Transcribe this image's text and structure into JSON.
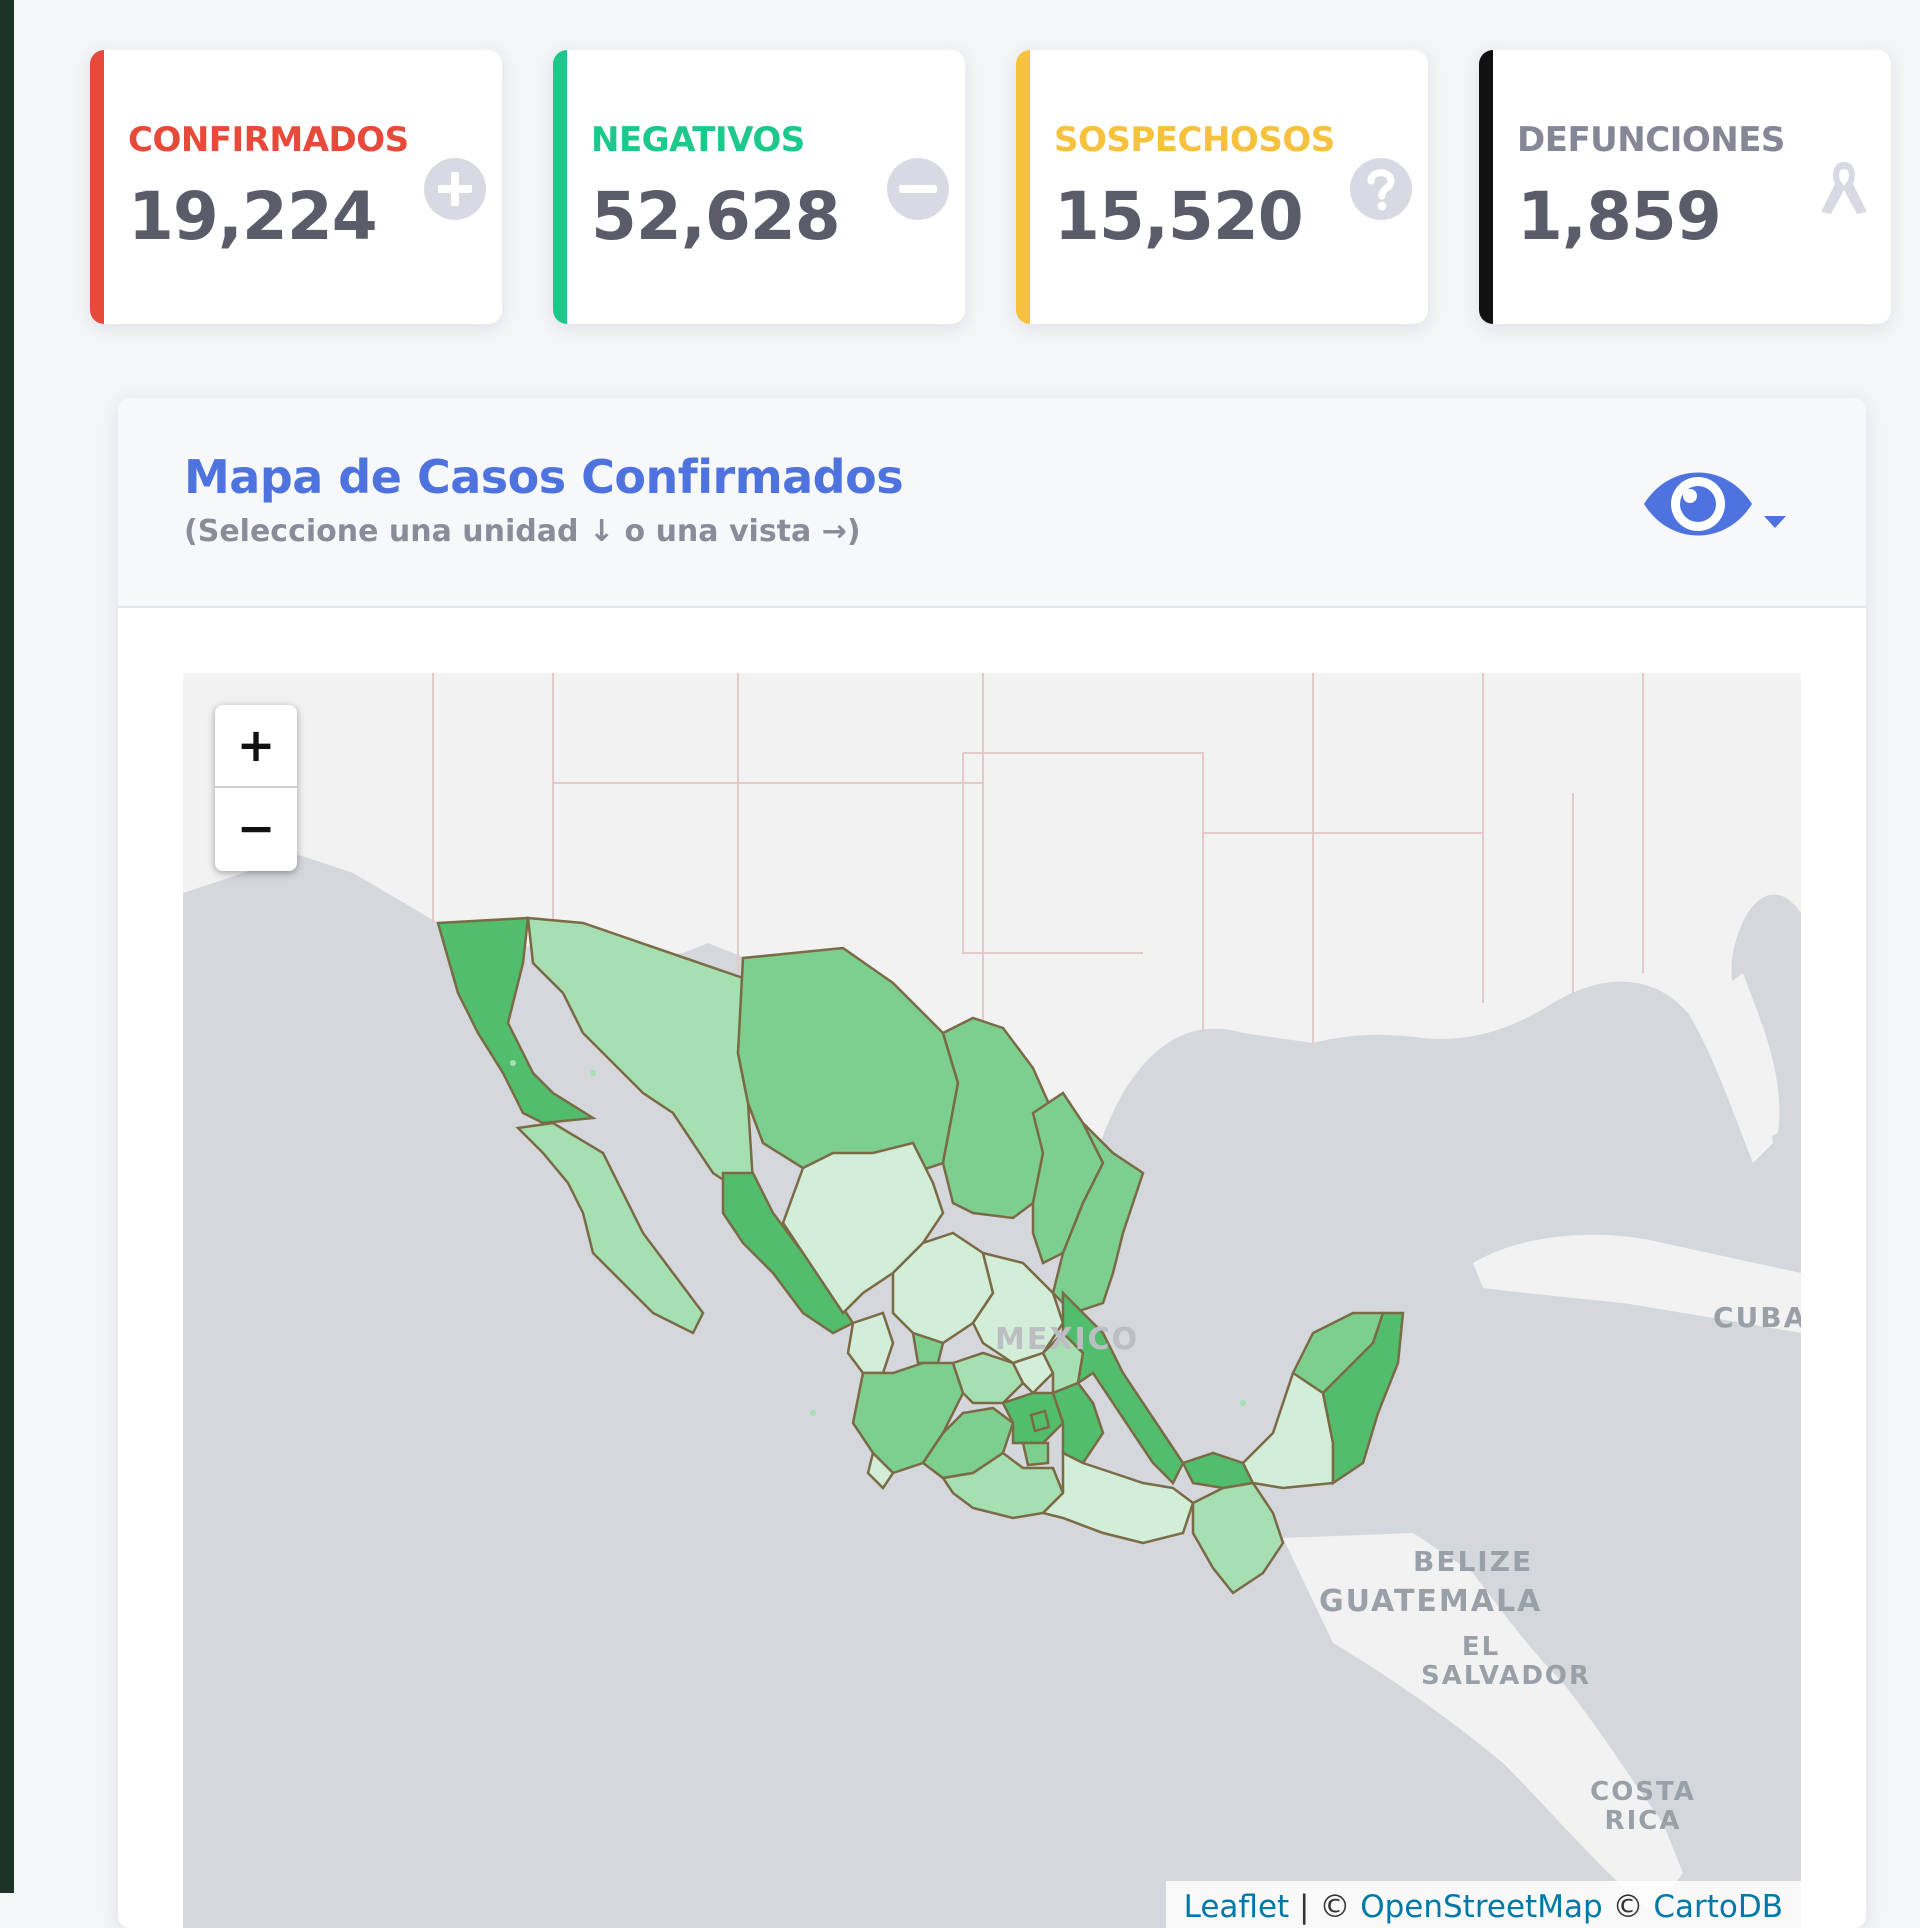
{
  "stats": {
    "confirmed": {
      "label": "CONFIRMADOS",
      "value": "19,224",
      "color": "#e74a3b",
      "icon": "plus-circle-icon"
    },
    "negative": {
      "label": "NEGATIVOS",
      "value": "52,628",
      "color": "#1cc88a",
      "icon": "minus-circle-icon"
    },
    "suspected": {
      "label": "SOSPECHOSOS",
      "value": "15,520",
      "color": "#f6c23e",
      "icon": "question-circle-icon"
    },
    "deaths": {
      "label": "DEFUNCIONES",
      "value": "1,859",
      "color": "#111111",
      "icon": "ribbon-icon"
    }
  },
  "map_panel": {
    "title": "Mapa de Casos Confirmados",
    "subtitle": "(Seleccione una unidad ↓ o una vista →)",
    "view_icon": "eye-icon",
    "accent": "#4e73df"
  },
  "map": {
    "zoom_in": "+",
    "zoom_out": "−",
    "labels": {
      "mexico": "MEXICO",
      "cuba": "CUBA",
      "belize": "BELIZE",
      "guatemala": "GUATEMALA",
      "el_salvador": "EL SALVADOR",
      "costa_rica": "COSTA RICA"
    },
    "attribution": {
      "leaflet": "Leaflet",
      "separator": " | © ",
      "osm": "OpenStreetMap",
      "copy": " © ",
      "carto": "CartoDB"
    },
    "colors": {
      "water": "#d4d7db",
      "land": "#f2f2f2",
      "border": "#7a6a45",
      "shade1": "#d2eed8",
      "shade2": "#a6dfb2",
      "shade3": "#7ccf8e",
      "shade4": "#52bd6c"
    }
  }
}
